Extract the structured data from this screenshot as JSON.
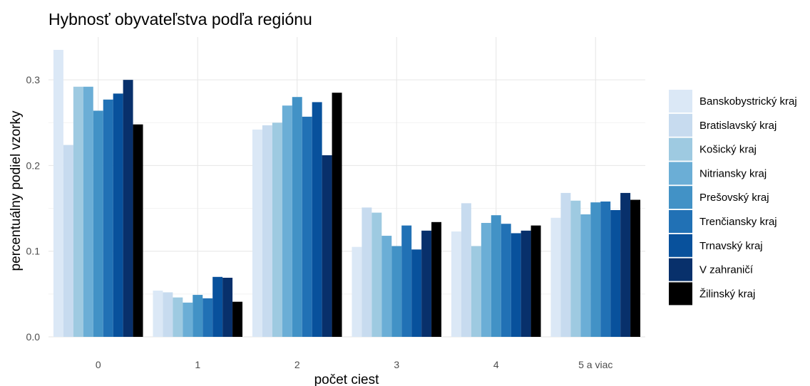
{
  "chart_data": {
    "type": "bar",
    "title": "Hybnosť obyvateľstva podľa regiónu",
    "xlabel": "počet ciest",
    "ylabel": "percentuálny podiel vzorky",
    "categories": [
      "0",
      "1",
      "2",
      "3",
      "4",
      "5 a viac"
    ],
    "ylim": [
      0,
      0.35
    ],
    "yticks": [
      "0.0",
      "0.1",
      "0.2",
      "0.3"
    ],
    "grid": true,
    "legend_position": "right",
    "series": [
      {
        "name": "Banskobystrický kraj",
        "color": "#dbe8f6",
        "values": [
          0.335,
          0.054,
          0.242,
          0.105,
          0.123,
          0.139
        ]
      },
      {
        "name": "Bratislavský kraj",
        "color": "#c7dbef",
        "values": [
          0.224,
          0.052,
          0.247,
          0.151,
          0.156,
          0.168
        ]
      },
      {
        "name": "Košický kraj",
        "color": "#9ecae1",
        "values": [
          0.292,
          0.046,
          0.25,
          0.145,
          0.106,
          0.159
        ]
      },
      {
        "name": "Nitriansky kraj",
        "color": "#6baed6",
        "values": [
          0.292,
          0.04,
          0.27,
          0.118,
          0.133,
          0.143
        ]
      },
      {
        "name": "Prešovský kraj",
        "color": "#4292c6",
        "values": [
          0.264,
          0.049,
          0.28,
          0.106,
          0.142,
          0.157
        ]
      },
      {
        "name": "Trenčiansky kraj",
        "color": "#2171b5",
        "values": [
          0.277,
          0.045,
          0.257,
          0.13,
          0.132,
          0.158
        ]
      },
      {
        "name": "Trnavský kraj",
        "color": "#08519c",
        "values": [
          0.284,
          0.07,
          0.274,
          0.102,
          0.121,
          0.148
        ]
      },
      {
        "name": "V zahraničí",
        "color": "#08306b",
        "values": [
          0.3,
          0.069,
          0.212,
          0.124,
          0.124,
          0.168
        ]
      },
      {
        "name": "Žilinský kraj",
        "color": "#000000",
        "values": [
          0.248,
          0.041,
          0.285,
          0.134,
          0.13,
          0.16
        ]
      }
    ]
  }
}
